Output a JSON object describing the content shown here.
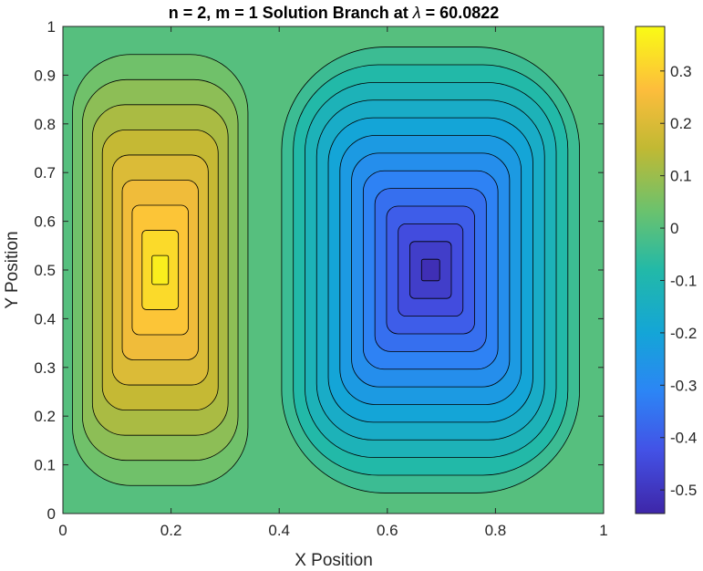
{
  "chart_data": {
    "type": "heatmap",
    "subtype": "filled-contour",
    "title_prefix": "n = 2, m = 1 Solution Branch at ",
    "title_symbol": "λ",
    "title_suffix": " = 60.0822",
    "xlabel": "X Position",
    "ylabel": "Y Position",
    "xlim": [
      0,
      1
    ],
    "ylim": [
      0,
      1
    ],
    "x_ticks": [
      "0",
      "0.2",
      "0.4",
      "0.6",
      "0.8",
      "1"
    ],
    "y_ticks": [
      "0",
      "0.1",
      "0.2",
      "0.3",
      "0.4",
      "0.5",
      "0.6",
      "0.7",
      "0.8",
      "0.9",
      "1"
    ],
    "colorbar": {
      "range": [
        -0.545,
        0.385
      ],
      "ticks": [
        "-0.5",
        "-0.4",
        "-0.3",
        "-0.2",
        "-0.1",
        "0",
        "0.1",
        "0.2",
        "0.3"
      ],
      "colormap": "parula"
    },
    "field": {
      "positive_peak": {
        "x": 0.18,
        "y": 0.5,
        "value": 0.38
      },
      "negative_peak": {
        "x": 0.68,
        "y": 0.5,
        "value": -0.54
      },
      "zero_line_x": 0.38
    },
    "contour_interval": 0.04,
    "grid": false,
    "colorbar_placement": "right"
  }
}
